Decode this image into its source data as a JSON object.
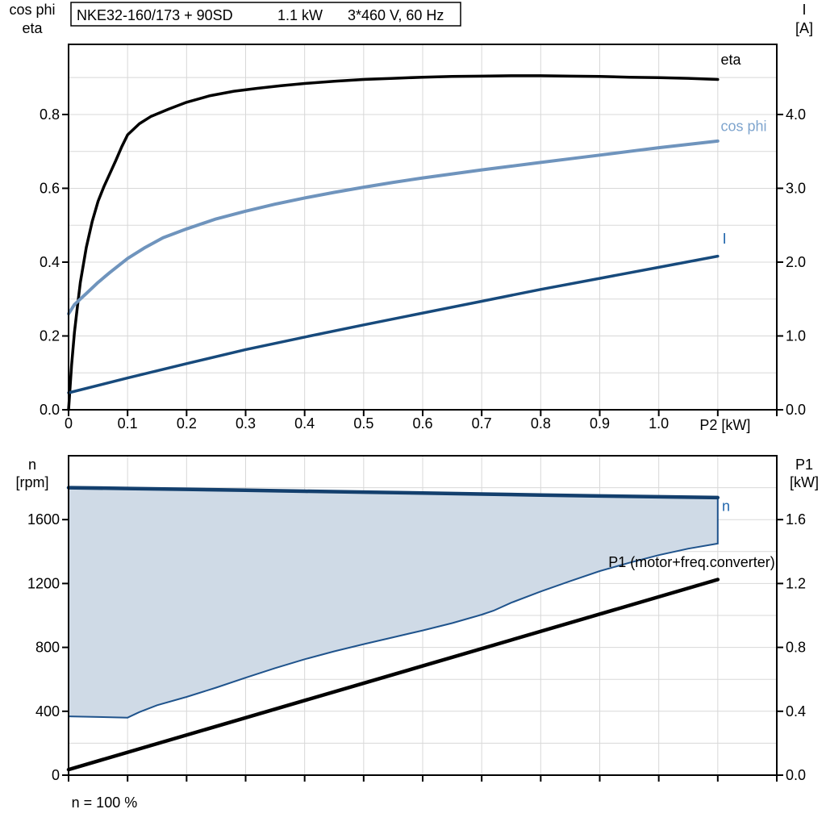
{
  "header": {
    "title_parts": [
      "NKE32-160/173 + 90SD",
      "1.1 kW",
      "3*460 V, 60 Hz"
    ]
  },
  "colors": {
    "axis": "#000000",
    "grid": "#d8d8d8",
    "eta_curve": "#000000",
    "cos_phi_curve": "#6f94bd",
    "cos_phi_label": "#7fa5ce",
    "current_curve": "#174a7c",
    "speed_curve": "#133f6d",
    "min_speed_curve": "#1f538c",
    "p1_curve": "#000000",
    "blue_label": "#2166ac",
    "area_fill": "#cfdae6"
  },
  "chart_data": [
    {
      "id": "top",
      "type": "line",
      "title": "Motor efficiency, power factor and current vs shaft power",
      "legend_position": "inline-right",
      "grid": true,
      "x": {
        "label": "P2 [kW]",
        "min": 0,
        "max": 1.2,
        "grid_step": 0.1,
        "ticks": [
          0,
          0.1,
          0.2,
          0.3,
          0.4,
          0.5,
          0.6,
          0.7,
          0.8,
          0.9,
          1.0,
          1.1,
          1.2
        ],
        "tick_labels": [
          "0",
          "0.1",
          "0.2",
          "0.3",
          "0.4",
          "0.5",
          "0.6",
          "0.7",
          "0.8",
          "0.9",
          "1.0",
          "",
          ""
        ]
      },
      "y_left": {
        "label_lines": [
          "cos phi",
          "eta"
        ],
        "min": 0,
        "max": 0.99,
        "grid_step": 0.1,
        "ticks": [
          0,
          0.2,
          0.4,
          0.6,
          0.8
        ],
        "tick_labels": [
          "0.0",
          "0.2",
          "0.4",
          "0.6",
          "0.8"
        ]
      },
      "y_right": {
        "label_lines": [
          "I",
          "[A]"
        ],
        "min": 0,
        "max": 4.95,
        "ticks": [
          0,
          1,
          2,
          3,
          4
        ],
        "tick_labels": [
          "0.0",
          "1.0",
          "2.0",
          "3.0",
          "4.0"
        ]
      },
      "series": [
        {
          "name": "eta",
          "axis": "left",
          "color": "#000000",
          "width": 3.5,
          "points": [
            [
              0,
              0
            ],
            [
              0.005,
              0.12
            ],
            [
              0.01,
              0.21
            ],
            [
              0.015,
              0.28
            ],
            [
              0.02,
              0.345
            ],
            [
              0.03,
              0.44
            ],
            [
              0.04,
              0.51
            ],
            [
              0.05,
              0.565
            ],
            [
              0.06,
              0.605
            ],
            [
              0.07,
              0.64
            ],
            [
              0.08,
              0.675
            ],
            [
              0.09,
              0.712
            ],
            [
              0.1,
              0.745
            ],
            [
              0.12,
              0.775
            ],
            [
              0.14,
              0.795
            ],
            [
              0.17,
              0.815
            ],
            [
              0.2,
              0.833
            ],
            [
              0.24,
              0.851
            ],
            [
              0.28,
              0.863
            ],
            [
              0.32,
              0.871
            ],
            [
              0.36,
              0.878
            ],
            [
              0.4,
              0.884
            ],
            [
              0.45,
              0.89
            ],
            [
              0.5,
              0.895
            ],
            [
              0.55,
              0.898
            ],
            [
              0.6,
              0.901
            ],
            [
              0.65,
              0.903
            ],
            [
              0.7,
              0.904
            ],
            [
              0.75,
              0.905
            ],
            [
              0.8,
              0.905
            ],
            [
              0.85,
              0.904
            ],
            [
              0.9,
              0.903
            ],
            [
              0.95,
              0.901
            ],
            [
              1.0,
              0.9
            ],
            [
              1.05,
              0.898
            ],
            [
              1.1,
              0.895
            ]
          ]
        },
        {
          "name": "cos phi",
          "axis": "left",
          "color": "#6f94bd",
          "width": 4,
          "points": [
            [
              0,
              0.26
            ],
            [
              0.01,
              0.285
            ],
            [
              0.02,
              0.3
            ],
            [
              0.03,
              0.315
            ],
            [
              0.05,
              0.345
            ],
            [
              0.07,
              0.372
            ],
            [
              0.1,
              0.41
            ],
            [
              0.13,
              0.44
            ],
            [
              0.16,
              0.466
            ],
            [
              0.2,
              0.49
            ],
            [
              0.25,
              0.517
            ],
            [
              0.3,
              0.538
            ],
            [
              0.35,
              0.557
            ],
            [
              0.4,
              0.574
            ],
            [
              0.45,
              0.589
            ],
            [
              0.5,
              0.603
            ],
            [
              0.55,
              0.616
            ],
            [
              0.6,
              0.628
            ],
            [
              0.65,
              0.639
            ],
            [
              0.7,
              0.65
            ],
            [
              0.75,
              0.66
            ],
            [
              0.8,
              0.67
            ],
            [
              0.85,
              0.68
            ],
            [
              0.9,
              0.69
            ],
            [
              0.95,
              0.7
            ],
            [
              1.0,
              0.71
            ],
            [
              1.05,
              0.719
            ],
            [
              1.1,
              0.728
            ]
          ]
        },
        {
          "name": "I",
          "axis": "right",
          "color": "#174a7c",
          "width": 3.5,
          "points": [
            [
              0,
              0.23
            ],
            [
              0.1,
              0.43
            ],
            [
              0.2,
              0.625
            ],
            [
              0.3,
              0.815
            ],
            [
              0.4,
              0.985
            ],
            [
              0.5,
              1.15
            ],
            [
              0.6,
              1.31
            ],
            [
              0.7,
              1.47
            ],
            [
              0.8,
              1.63
            ],
            [
              0.9,
              1.78
            ],
            [
              1.0,
              1.93
            ],
            [
              1.1,
              2.08
            ]
          ]
        }
      ],
      "annotations": [
        {
          "text": "eta",
          "x": 1.105,
          "y": 0.935,
          "color": "#000000",
          "anchor": "start",
          "size": 18
        },
        {
          "text": "cos phi",
          "x": 1.105,
          "y": 0.755,
          "color": "#7fa5ce",
          "anchor": "start",
          "size": 18
        },
        {
          "text": "I",
          "x": 1.108,
          "y": 0.45,
          "color": "#2166ac",
          "anchor": "start",
          "size": 18
        }
      ]
    },
    {
      "id": "bottom",
      "type": "line",
      "title": "Speed range and input power vs shaft power",
      "grid": true,
      "x": {
        "label": "",
        "min": 0,
        "max": 1.2,
        "grid_step": 0.1,
        "ticks": [
          0,
          0.1,
          0.2,
          0.3,
          0.4,
          0.5,
          0.6,
          0.7,
          0.8,
          0.9,
          1.0,
          1.1,
          1.2
        ],
        "tick_labels": [
          "",
          "",
          "",
          "",
          "",
          "",
          "",
          "",
          "",
          "",
          "",
          "",
          ""
        ]
      },
      "y_left": {
        "label_lines": [
          "n",
          "[rpm]"
        ],
        "min": 0,
        "max": 2000,
        "grid_step": 200,
        "ticks": [
          0,
          400,
          800,
          1200,
          1600
        ],
        "tick_labels": [
          "0",
          "400",
          "800",
          "1200",
          "1600"
        ]
      },
      "y_right": {
        "label_lines": [
          "P1",
          "[kW]"
        ],
        "min": 0,
        "max": 2.0,
        "ticks": [
          0,
          0.4,
          0.8,
          1.2,
          1.6
        ],
        "tick_labels": [
          "0.0",
          "0.4",
          "0.8",
          "1.2",
          "1.6"
        ]
      },
      "area": {
        "upper": "n",
        "lower": "n min",
        "fill": "#cfdae6",
        "edge_color": "#1f538c",
        "edge_width": 2
      },
      "series": [
        {
          "name": "n min",
          "axis": "left",
          "color": "#1f538c",
          "width": 2,
          "points": [
            [
              0,
              368
            ],
            [
              0.05,
              364
            ],
            [
              0.1,
              360
            ],
            [
              0.12,
              395
            ],
            [
              0.15,
              438
            ],
            [
              0.2,
              490
            ],
            [
              0.25,
              548
            ],
            [
              0.3,
              610
            ],
            [
              0.35,
              670
            ],
            [
              0.4,
              726
            ],
            [
              0.45,
              775
            ],
            [
              0.5,
              820
            ],
            [
              0.55,
              863
            ],
            [
              0.6,
              906
            ],
            [
              0.65,
              952
            ],
            [
              0.7,
              1005
            ],
            [
              0.72,
              1030
            ],
            [
              0.75,
              1080
            ],
            [
              0.8,
              1150
            ],
            [
              0.85,
              1215
            ],
            [
              0.9,
              1278
            ],
            [
              0.95,
              1330
            ],
            [
              1.0,
              1378
            ],
            [
              1.05,
              1418
            ],
            [
              1.1,
              1450
            ]
          ]
        },
        {
          "name": "n",
          "axis": "left",
          "color": "#133f6d",
          "width": 4.5,
          "points": [
            [
              0,
              1800
            ],
            [
              0.1,
              1795
            ],
            [
              0.2,
              1790
            ],
            [
              0.3,
              1784
            ],
            [
              0.4,
              1778
            ],
            [
              0.5,
              1772
            ],
            [
              0.6,
              1766
            ],
            [
              0.7,
              1760
            ],
            [
              0.8,
              1754
            ],
            [
              0.9,
              1748
            ],
            [
              1.0,
              1743
            ],
            [
              1.1,
              1738
            ]
          ]
        },
        {
          "name": "P1 (motor+freq.converter)",
          "axis": "right",
          "color": "#000000",
          "width": 4.5,
          "points": [
            [
              0,
              0.035
            ],
            [
              0.55,
              0.63
            ],
            [
              1.1,
              1.225
            ]
          ]
        }
      ],
      "annotations": [
        {
          "text": "n",
          "x": 1.107,
          "y": 1655,
          "color": "#2166ac",
          "anchor": "start",
          "size": 18
        },
        {
          "text": "P1 (motor+freq.converter)",
          "x": 1.197,
          "y": 1303,
          "color": "#000000",
          "anchor": "end",
          "size": 18
        },
        {
          "text": "n = 100 %",
          "x": 0.005,
          "y": -202,
          "color": "#000000",
          "anchor": "start",
          "size": 18
        }
      ]
    }
  ]
}
